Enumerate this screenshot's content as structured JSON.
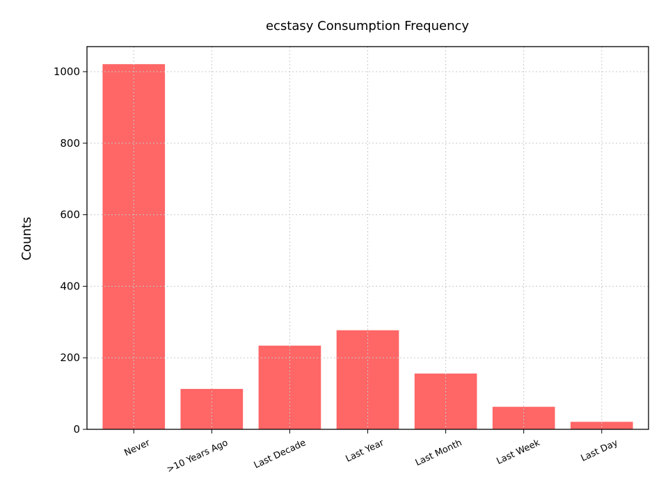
{
  "chart_data": {
    "type": "bar",
    "title": "ecstasy Consumption Frequency",
    "xlabel": "",
    "ylabel": "Counts",
    "categories": [
      "Never",
      ">10 Years Ago",
      "Last Decade",
      "Last Year",
      "Last Month",
      "Last Week",
      "Last Day"
    ],
    "values": [
      1021,
      113,
      234,
      277,
      156,
      63,
      21
    ],
    "ylim": [
      0,
      1070
    ],
    "yticks": [
      0,
      200,
      400,
      600,
      800,
      1000
    ],
    "grid": true,
    "bar_color": "#ff6666"
  }
}
